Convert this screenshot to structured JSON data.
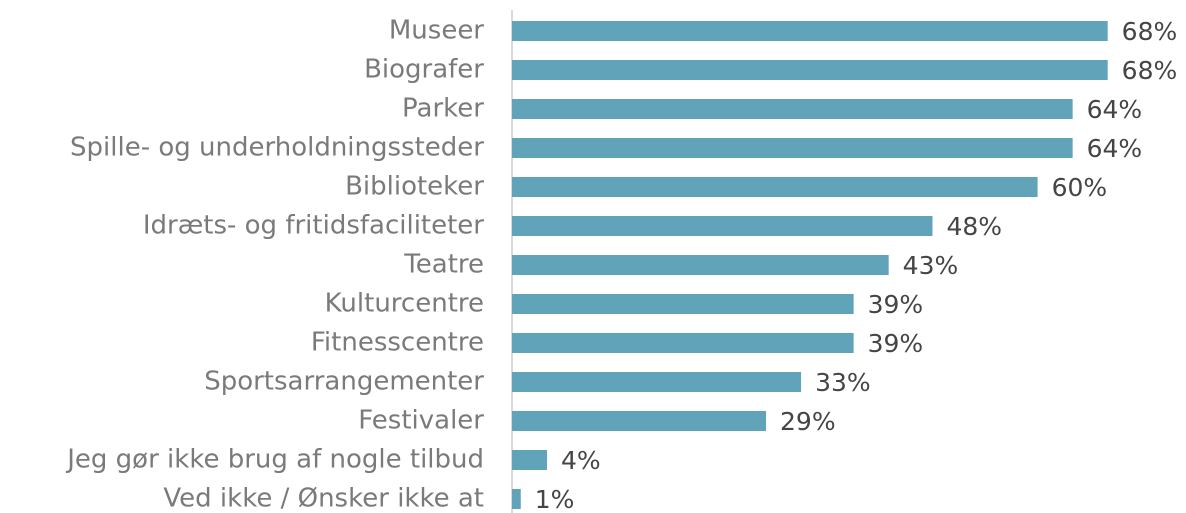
{
  "chart_data": {
    "type": "bar",
    "orientation": "horizontal",
    "categories": [
      "Museer",
      "Biografer",
      "Parker",
      "Spille- og underholdningssteder",
      "Biblioteker",
      "Idræts- og fritidsfaciliteter",
      "Teatre",
      "Kulturcentre",
      "Fitnesscentre",
      "Sportsarrangementer",
      "Festivaler",
      "Jeg gør ikke brug af nogle tilbud",
      "Ved ikke / Ønsker ikke at"
    ],
    "values": [
      68,
      68,
      64,
      64,
      60,
      48,
      43,
      39,
      39,
      33,
      29,
      4,
      1
    ],
    "value_labels": [
      "68%",
      "68%",
      "64%",
      "64%",
      "60%",
      "48%",
      "43%",
      "39%",
      "39%",
      "33%",
      "29%",
      "4%",
      "1%"
    ],
    "color": "#61a4b9"
  }
}
